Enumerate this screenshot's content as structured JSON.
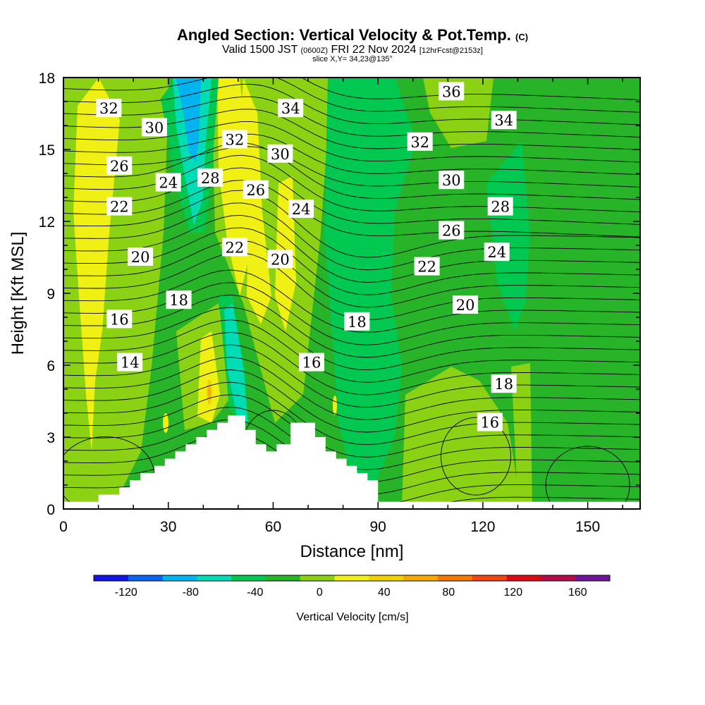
{
  "title": {
    "main": "Angled Section: Vertical Velocity & Pot.Temp.",
    "main_unit": "(C)",
    "valid_prefix": "Valid 1500 JST",
    "valid_zulu": "(0600Z)",
    "valid_date": "FRI 22 Nov 2024",
    "valid_fcst": "[12hrFcst@2153z]",
    "slice": "slice X,Y= 34,23@135°"
  },
  "chart_data": {
    "type": "heatmap",
    "xlabel": "Distance [nm]",
    "ylabel": "Height [Kft MSL]",
    "xlim": [
      0,
      165
    ],
    "ylim": [
      0,
      18
    ],
    "xticks": [
      0,
      30,
      60,
      90,
      120,
      150
    ],
    "yticks": [
      0,
      3,
      6,
      9,
      12,
      15,
      18
    ],
    "colorbar": {
      "label": "Vertical Velocity [cm/s]",
      "range": [
        -140,
        180
      ],
      "ticks": [
        -120,
        -80,
        -40,
        0,
        40,
        80,
        120,
        160
      ],
      "colors": [
        "#1414e6",
        "#0a64f0",
        "#00b4f0",
        "#00dcb4",
        "#00c850",
        "#28b428",
        "#8cd214",
        "#f0f014",
        "#f0d200",
        "#f5aa00",
        "#f57800",
        "#f04614",
        "#dc0a14",
        "#b40a46",
        "#6e1496"
      ]
    },
    "terrain_profile_kft": [
      [
        0,
        0.3
      ],
      [
        10,
        0.3
      ],
      [
        10,
        0.6
      ],
      [
        16,
        0.6
      ],
      [
        16,
        0.9
      ],
      [
        19,
        0.9
      ],
      [
        19,
        1.2
      ],
      [
        22,
        1.2
      ],
      [
        22,
        1.5
      ],
      [
        26,
        1.5
      ],
      [
        26,
        1.8
      ],
      [
        29,
        1.8
      ],
      [
        29,
        2.1
      ],
      [
        32,
        2.1
      ],
      [
        32,
        2.4
      ],
      [
        35,
        2.4
      ],
      [
        35,
        2.7
      ],
      [
        38,
        2.7
      ],
      [
        38,
        3.0
      ],
      [
        41,
        3.0
      ],
      [
        41,
        3.3
      ],
      [
        44,
        3.3
      ],
      [
        44,
        3.6
      ],
      [
        47,
        3.6
      ],
      [
        47,
        3.9
      ],
      [
        52,
        3.9
      ],
      [
        52,
        3.3
      ],
      [
        55,
        3.3
      ],
      [
        55,
        2.7
      ],
      [
        58,
        2.7
      ],
      [
        58,
        2.4
      ],
      [
        61,
        2.4
      ],
      [
        61,
        2.7
      ],
      [
        65,
        2.7
      ],
      [
        65,
        3.6
      ],
      [
        72,
        3.6
      ],
      [
        72,
        3.0
      ],
      [
        75,
        3.0
      ],
      [
        75,
        2.4
      ],
      [
        78,
        2.4
      ],
      [
        78,
        2.1
      ],
      [
        81,
        2.1
      ],
      [
        81,
        1.8
      ],
      [
        84,
        1.8
      ],
      [
        84,
        1.5
      ],
      [
        87,
        1.5
      ],
      [
        87,
        1.2
      ],
      [
        90,
        1.2
      ],
      [
        90,
        0.3
      ],
      [
        165,
        0.3
      ]
    ],
    "theta_contour_labels": [
      {
        "value": "32",
        "x": 13,
        "y": 16.7
      },
      {
        "value": "30",
        "x": 26,
        "y": 15.9
      },
      {
        "value": "34",
        "x": 65,
        "y": 16.7
      },
      {
        "value": "36",
        "x": 111,
        "y": 17.4
      },
      {
        "value": "32",
        "x": 49,
        "y": 15.4
      },
      {
        "value": "34",
        "x": 126,
        "y": 16.2
      },
      {
        "value": "32",
        "x": 102,
        "y": 15.3
      },
      {
        "value": "30",
        "x": 62,
        "y": 14.8
      },
      {
        "value": "26",
        "x": 16,
        "y": 14.3
      },
      {
        "value": "24",
        "x": 30,
        "y": 13.6
      },
      {
        "value": "28",
        "x": 42,
        "y": 13.8
      },
      {
        "value": "26",
        "x": 55,
        "y": 13.3
      },
      {
        "value": "30",
        "x": 111,
        "y": 13.7
      },
      {
        "value": "28",
        "x": 125,
        "y": 12.6
      },
      {
        "value": "22",
        "x": 16,
        "y": 12.6
      },
      {
        "value": "24",
        "x": 68,
        "y": 12.5
      },
      {
        "value": "26",
        "x": 111,
        "y": 11.6
      },
      {
        "value": "22",
        "x": 49,
        "y": 10.9
      },
      {
        "value": "20",
        "x": 22,
        "y": 10.5
      },
      {
        "value": "20",
        "x": 62,
        "y": 10.4
      },
      {
        "value": "24",
        "x": 124,
        "y": 10.7
      },
      {
        "value": "22",
        "x": 104,
        "y": 10.1
      },
      {
        "value": "18",
        "x": 33,
        "y": 8.7
      },
      {
        "value": "20",
        "x": 115,
        "y": 8.5
      },
      {
        "value": "16",
        "x": 16,
        "y": 7.9
      },
      {
        "value": "18",
        "x": 84,
        "y": 7.8
      },
      {
        "value": "14",
        "x": 19,
        "y": 6.1
      },
      {
        "value": "16",
        "x": 71,
        "y": 6.1
      },
      {
        "value": "18",
        "x": 126,
        "y": 5.2
      },
      {
        "value": "16",
        "x": 122,
        "y": 3.6
      }
    ]
  }
}
